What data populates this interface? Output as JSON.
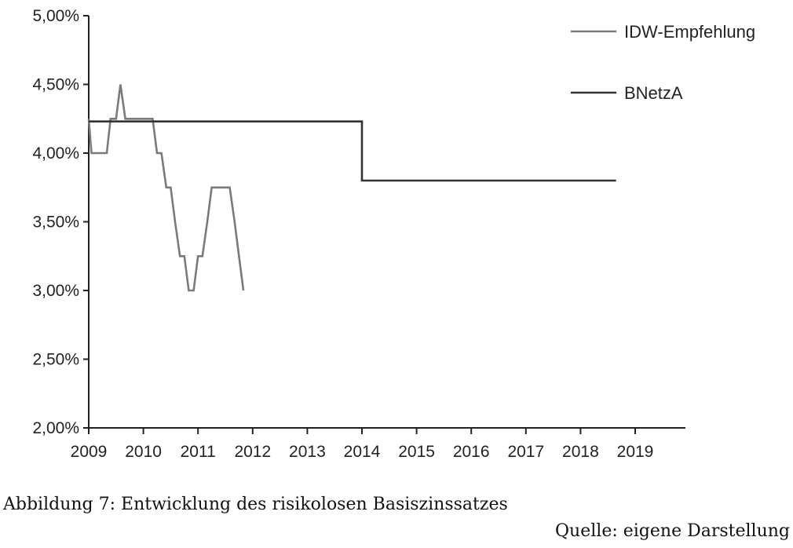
{
  "chart_data": {
    "type": "line",
    "title": "",
    "xlabel": "",
    "ylabel": "",
    "xlim": [
      2009,
      2019.9
    ],
    "ylim": [
      2.0,
      5.0
    ],
    "x_ticks": [
      2009,
      2010,
      2011,
      2012,
      2013,
      2014,
      2015,
      2016,
      2017,
      2018,
      2019
    ],
    "x_tick_labels": [
      "2009",
      "2010",
      "2011",
      "2012",
      "2013",
      "2014",
      "2015",
      "2016",
      "2017",
      "2018",
      "2019"
    ],
    "y_ticks": [
      2.0,
      2.5,
      3.0,
      3.5,
      4.0,
      4.5,
      5.0
    ],
    "y_tick_labels": [
      "2,00%",
      "2,50%",
      "3,00%",
      "3,50%",
      "4,00%",
      "4,50%",
      "5,00%"
    ],
    "grid": false,
    "legend_position": "top-right",
    "series": [
      {
        "name": "IDW-Empfehlung",
        "color": "#7a7a7a",
        "x": [
          2009.0,
          2009.05,
          2009.33,
          2009.4,
          2009.5,
          2009.58,
          2009.67,
          2009.75,
          2009.83,
          2010.0,
          2010.17,
          2010.25,
          2010.33,
          2010.42,
          2010.5,
          2010.58,
          2010.67,
          2010.75,
          2010.83,
          2010.92,
          2011.0,
          2011.08,
          2011.17,
          2011.25,
          2011.33,
          2011.42,
          2011.5,
          2011.58,
          2011.67,
          2011.75,
          2011.83
        ],
        "y": [
          4.25,
          4.0,
          4.0,
          4.25,
          4.25,
          4.5,
          4.25,
          4.25,
          4.25,
          4.25,
          4.25,
          4.0,
          4.0,
          3.75,
          3.75,
          3.5,
          3.25,
          3.25,
          3.0,
          3.0,
          3.25,
          3.25,
          3.5,
          3.75,
          3.75,
          3.75,
          3.75,
          3.75,
          3.5,
          3.25,
          3.0
        ]
      },
      {
        "name": "BNetzA",
        "color": "#333333",
        "x": [
          2009.0,
          2014.0,
          2014.0,
          2018.65
        ],
        "y": [
          4.23,
          4.23,
          3.8,
          3.8
        ]
      }
    ]
  },
  "caption": "Abbildung 7: Entwicklung des risikolosen Basiszinssatzes",
  "source": "Quelle: eigene Darstellung"
}
